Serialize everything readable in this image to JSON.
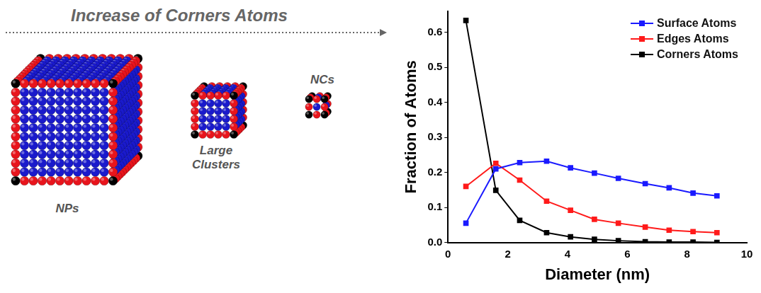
{
  "header": {
    "text": "Increase of Corners Atoms"
  },
  "illustration": {
    "labels": [
      "NPs",
      "Large Clusters",
      "NCs"
    ]
  },
  "chart_data": {
    "type": "line",
    "x_label": "Diameter (nm)",
    "y_label": "Fraction of Atoms",
    "x": [
      0.6,
      1.6,
      2.4,
      3.3,
      4.1,
      4.9,
      5.7,
      6.6,
      7.4,
      8.2,
      9.0
    ],
    "series": [
      {
        "name": "Surface Atoms",
        "color": "#1a1aff",
        "values": [
          0.055,
          0.21,
          0.228,
          0.232,
          0.213,
          0.198,
          0.183,
          0.168,
          0.156,
          0.141,
          0.133
        ]
      },
      {
        "name": "Edges Atoms",
        "color": "#ff1a1a",
        "values": [
          0.16,
          0.226,
          0.178,
          0.118,
          0.092,
          0.066,
          0.055,
          0.044,
          0.035,
          0.031,
          0.028
        ]
      },
      {
        "name": "Corners Atoms",
        "color": "#000000",
        "values": [
          0.634,
          0.149,
          0.063,
          0.028,
          0.016,
          0.009,
          0.005,
          0.002,
          0.001,
          0.001,
          0.0
        ]
      }
    ],
    "xlim": [
      0,
      10
    ],
    "xticks": [
      0,
      2,
      4,
      6,
      8,
      10
    ],
    "ylim": [
      0,
      0.66
    ],
    "yticks": [
      {
        "value": 0,
        "label": "0.0"
      },
      0.1,
      0.2,
      0.3,
      0.4,
      0.5,
      0.6
    ],
    "grid": false,
    "legend": "upper right",
    "marker": "square",
    "line_style": "solid"
  }
}
